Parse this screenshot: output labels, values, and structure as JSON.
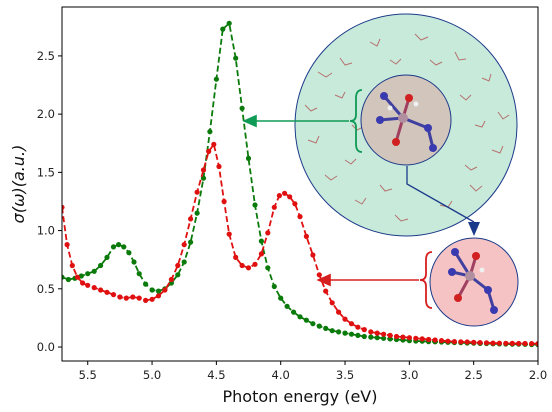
{
  "chart_data": {
    "type": "line",
    "xlabel": "Photon energy (eV)",
    "ylabel": "σ(ω)(a.u.)",
    "xlim": [
      5.7,
      2.0
    ],
    "ylim": [
      -0.12,
      2.92
    ],
    "x_ticks": [
      5.5,
      5.0,
      4.5,
      4.0,
      3.5,
      3.0,
      2.5,
      2.0
    ],
    "x_tick_labels": [
      "5.5",
      "5.0",
      "4.5",
      "4.0",
      "3.5",
      "3.0",
      "2.5",
      "2.0"
    ],
    "y_ticks": [
      0.0,
      0.5,
      1.0,
      1.5,
      2.0,
      2.5
    ],
    "y_tick_labels": [
      "0.0",
      "0.5",
      "1.0",
      "1.5",
      "2.0",
      "2.5"
    ],
    "x_reversed": true,
    "grid": false,
    "series": [
      {
        "color": "#0a7a0a",
        "line_style": "dashed",
        "marker": "circle",
        "points": [
          [
            5.7,
            0.6
          ],
          [
            5.65,
            0.58
          ],
          [
            5.6,
            0.59
          ],
          [
            5.55,
            0.61
          ],
          [
            5.5,
            0.63
          ],
          [
            5.45,
            0.65
          ],
          [
            5.4,
            0.7
          ],
          [
            5.35,
            0.77
          ],
          [
            5.3,
            0.86
          ],
          [
            5.26,
            0.88
          ],
          [
            5.22,
            0.86
          ],
          [
            5.18,
            0.81
          ],
          [
            5.14,
            0.73
          ],
          [
            5.1,
            0.63
          ],
          [
            5.05,
            0.54
          ],
          [
            5.0,
            0.49
          ],
          [
            4.95,
            0.48
          ],
          [
            4.9,
            0.5
          ],
          [
            4.85,
            0.55
          ],
          [
            4.8,
            0.62
          ],
          [
            4.75,
            0.73
          ],
          [
            4.7,
            0.9
          ],
          [
            4.65,
            1.15
          ],
          [
            4.6,
            1.45
          ],
          [
            4.55,
            1.85
          ],
          [
            4.5,
            2.3
          ],
          [
            4.45,
            2.73
          ],
          [
            4.4,
            2.78
          ],
          [
            4.35,
            2.48
          ],
          [
            4.3,
            2.05
          ],
          [
            4.25,
            1.62
          ],
          [
            4.2,
            1.22
          ],
          [
            4.15,
            0.91
          ],
          [
            4.1,
            0.68
          ],
          [
            4.05,
            0.52
          ],
          [
            4.0,
            0.42
          ],
          [
            3.95,
            0.35
          ],
          [
            3.9,
            0.3
          ],
          [
            3.85,
            0.26
          ],
          [
            3.8,
            0.23
          ],
          [
            3.75,
            0.2
          ],
          [
            3.7,
            0.18
          ],
          [
            3.65,
            0.16
          ],
          [
            3.6,
            0.14
          ],
          [
            3.55,
            0.13
          ],
          [
            3.5,
            0.12
          ],
          [
            3.45,
            0.11
          ],
          [
            3.4,
            0.1
          ],
          [
            3.35,
            0.09
          ],
          [
            3.3,
            0.085
          ],
          [
            3.25,
            0.08
          ],
          [
            3.2,
            0.075
          ],
          [
            3.15,
            0.07
          ],
          [
            3.1,
            0.065
          ],
          [
            3.05,
            0.06
          ],
          [
            3.0,
            0.055
          ],
          [
            2.95,
            0.052
          ],
          [
            2.9,
            0.05
          ],
          [
            2.85,
            0.047
          ],
          [
            2.8,
            0.045
          ],
          [
            2.75,
            0.043
          ],
          [
            2.7,
            0.041
          ],
          [
            2.65,
            0.039
          ],
          [
            2.6,
            0.037
          ],
          [
            2.55,
            0.035
          ],
          [
            2.5,
            0.033
          ],
          [
            2.45,
            0.031
          ],
          [
            2.4,
            0.03
          ],
          [
            2.35,
            0.028
          ],
          [
            2.3,
            0.027
          ],
          [
            2.25,
            0.026
          ],
          [
            2.2,
            0.025
          ],
          [
            2.15,
            0.024
          ],
          [
            2.1,
            0.023
          ],
          [
            2.05,
            0.022
          ],
          [
            2.0,
            0.021
          ]
        ]
      },
      {
        "color": "#e01010",
        "line_style": "dashed",
        "marker": "circle",
        "points": [
          [
            5.7,
            1.2
          ],
          [
            5.66,
            0.88
          ],
          [
            5.62,
            0.7
          ],
          [
            5.58,
            0.6
          ],
          [
            5.54,
            0.55
          ],
          [
            5.5,
            0.53
          ],
          [
            5.45,
            0.51
          ],
          [
            5.4,
            0.49
          ],
          [
            5.35,
            0.47
          ],
          [
            5.3,
            0.45
          ],
          [
            5.25,
            0.43
          ],
          [
            5.2,
            0.42
          ],
          [
            5.15,
            0.43
          ],
          [
            5.1,
            0.42
          ],
          [
            5.05,
            0.4
          ],
          [
            5.0,
            0.41
          ],
          [
            4.95,
            0.44
          ],
          [
            4.9,
            0.49
          ],
          [
            4.85,
            0.58
          ],
          [
            4.8,
            0.7
          ],
          [
            4.75,
            0.88
          ],
          [
            4.7,
            1.1
          ],
          [
            4.65,
            1.33
          ],
          [
            4.6,
            1.52
          ],
          [
            4.56,
            1.68
          ],
          [
            4.52,
            1.74
          ],
          [
            4.48,
            1.55
          ],
          [
            4.44,
            1.25
          ],
          [
            4.4,
            0.97
          ],
          [
            4.35,
            0.77
          ],
          [
            4.3,
            0.7
          ],
          [
            4.25,
            0.68
          ],
          [
            4.2,
            0.71
          ],
          [
            4.15,
            0.8
          ],
          [
            4.1,
            0.98
          ],
          [
            4.05,
            1.2
          ],
          [
            4.01,
            1.3
          ],
          [
            3.97,
            1.32
          ],
          [
            3.93,
            1.29
          ],
          [
            3.89,
            1.23
          ],
          [
            3.85,
            1.12
          ],
          [
            3.8,
            0.95
          ],
          [
            3.75,
            0.79
          ],
          [
            3.7,
            0.62
          ],
          [
            3.65,
            0.48
          ],
          [
            3.6,
            0.38
          ],
          [
            3.55,
            0.3
          ],
          [
            3.5,
            0.24
          ],
          [
            3.45,
            0.2
          ],
          [
            3.4,
            0.17
          ],
          [
            3.35,
            0.15
          ],
          [
            3.3,
            0.13
          ],
          [
            3.25,
            0.12
          ],
          [
            3.2,
            0.11
          ],
          [
            3.15,
            0.1
          ],
          [
            3.1,
            0.09
          ],
          [
            3.05,
            0.085
          ],
          [
            3.0,
            0.08
          ],
          [
            2.95,
            0.075
          ],
          [
            2.9,
            0.07
          ],
          [
            2.85,
            0.065
          ],
          [
            2.8,
            0.06
          ],
          [
            2.75,
            0.055
          ],
          [
            2.7,
            0.05
          ],
          [
            2.65,
            0.047
          ],
          [
            2.6,
            0.045
          ],
          [
            2.55,
            0.043
          ],
          [
            2.5,
            0.04
          ],
          [
            2.45,
            0.038
          ],
          [
            2.4,
            0.036
          ],
          [
            2.35,
            0.034
          ],
          [
            2.3,
            0.033
          ],
          [
            2.25,
            0.032
          ],
          [
            2.2,
            0.031
          ],
          [
            2.15,
            0.03
          ],
          [
            2.1,
            0.03
          ],
          [
            2.05,
            0.029
          ],
          [
            2.0,
            0.029
          ]
        ]
      }
    ],
    "annotations": [
      {
        "name": "solvated-molecule-inset",
        "fill": "#c8eadb",
        "core_fill": "#d2c5bb",
        "outline": "#1b3a8a"
      },
      {
        "name": "isolated-molecule-inset",
        "fill": "#f5c3c3",
        "outline": "#1b3a8a"
      },
      {
        "name": "green-arrow",
        "color": "#0f9a55"
      },
      {
        "name": "red-arrow",
        "color": "#d62020"
      },
      {
        "name": "blue-arrow",
        "color": "#1b3a8a"
      }
    ]
  }
}
